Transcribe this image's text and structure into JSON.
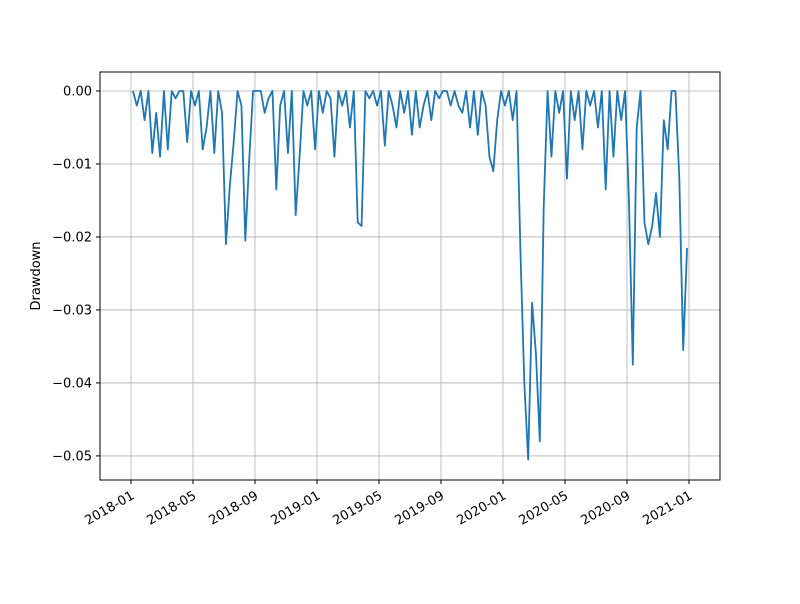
{
  "chart_data": {
    "type": "line",
    "y_label": "Drawdown",
    "x": [
      "2018-01",
      "2018-01",
      "2018-01",
      "2018-01",
      "2018-02",
      "2018-02",
      "2018-02",
      "2018-02",
      "2018-03",
      "2018-03",
      "2018-03",
      "2018-03",
      "2018-04",
      "2018-04",
      "2018-04",
      "2018-04",
      "2018-05",
      "2018-05",
      "2018-05",
      "2018-05",
      "2018-06",
      "2018-06",
      "2018-06",
      "2018-06",
      "2018-07",
      "2018-07",
      "2018-07",
      "2018-07",
      "2018-08",
      "2018-08",
      "2018-08",
      "2018-08",
      "2018-09",
      "2018-09",
      "2018-09",
      "2018-09",
      "2018-10",
      "2018-10",
      "2018-10",
      "2018-10",
      "2018-11",
      "2018-11",
      "2018-11",
      "2018-11",
      "2018-12",
      "2018-12",
      "2018-12",
      "2018-12",
      "2019-01",
      "2019-01",
      "2019-01",
      "2019-01",
      "2019-02",
      "2019-02",
      "2019-02",
      "2019-02",
      "2019-03",
      "2019-03",
      "2019-03",
      "2019-03",
      "2019-04",
      "2019-04",
      "2019-04",
      "2019-04",
      "2019-05",
      "2019-05",
      "2019-05",
      "2019-05",
      "2019-06",
      "2019-06",
      "2019-06",
      "2019-06",
      "2019-07",
      "2019-07",
      "2019-07",
      "2019-07",
      "2019-08",
      "2019-08",
      "2019-08",
      "2019-08",
      "2019-09",
      "2019-09",
      "2019-09",
      "2019-09",
      "2019-10",
      "2019-10",
      "2019-10",
      "2019-10",
      "2019-11",
      "2019-11",
      "2019-11",
      "2019-11",
      "2019-12",
      "2019-12",
      "2019-12",
      "2019-12",
      "2020-01",
      "2020-01",
      "2020-01",
      "2020-01",
      "2020-02",
      "2020-02",
      "2020-02",
      "2020-02",
      "2020-03",
      "2020-03",
      "2020-03",
      "2020-03",
      "2020-04",
      "2020-04",
      "2020-04",
      "2020-04",
      "2020-05",
      "2020-05",
      "2020-05",
      "2020-05",
      "2020-06",
      "2020-06",
      "2020-06",
      "2020-06",
      "2020-07",
      "2020-07",
      "2020-07",
      "2020-07",
      "2020-08",
      "2020-08",
      "2020-08",
      "2020-08",
      "2020-09",
      "2020-09",
      "2020-09",
      "2020-09",
      "2020-10",
      "2020-10",
      "2020-10",
      "2020-10",
      "2020-11",
      "2020-11",
      "2020-11",
      "2020-11",
      "2020-12",
      "2020-12",
      "2020-12",
      "2020-12"
    ],
    "series": [
      {
        "name": "Drawdown",
        "color": "#1f77b4",
        "values": [
          0,
          -0.002,
          0,
          -0.004,
          0,
          -0.0085,
          -0.003,
          -0.009,
          0,
          -0.008,
          0,
          -0.001,
          0,
          0,
          -0.007,
          0,
          -0.002,
          0,
          -0.008,
          -0.005,
          0,
          -0.0085,
          0,
          -0.003,
          -0.021,
          -0.013,
          -0.007,
          0,
          -0.002,
          -0.0205,
          -0.0095,
          0,
          0,
          0,
          -0.003,
          -0.001,
          0,
          -0.0135,
          -0.002,
          0,
          -0.0085,
          0,
          -0.017,
          -0.009,
          0,
          -0.002,
          0,
          -0.008,
          0,
          -0.003,
          0,
          -0.001,
          -0.009,
          0,
          -0.002,
          0,
          -0.005,
          0,
          -0.018,
          -0.0185,
          0,
          -0.001,
          0,
          -0.002,
          0,
          -0.0075,
          0,
          -0.002,
          -0.005,
          0,
          -0.003,
          0,
          -0.006,
          0,
          -0.005,
          -0.002,
          0,
          -0.004,
          0,
          -0.001,
          0,
          0,
          -0.002,
          0,
          -0.002,
          -0.003,
          0,
          -0.005,
          0,
          -0.006,
          0,
          -0.002,
          -0.009,
          -0.011,
          -0.004,
          0,
          -0.002,
          0,
          -0.004,
          0,
          -0.022,
          -0.04,
          -0.0505,
          -0.029,
          -0.036,
          -0.048,
          -0.016,
          0,
          -0.009,
          0,
          -0.003,
          0,
          -0.012,
          0,
          -0.004,
          0,
          -0.008,
          0,
          -0.002,
          0,
          -0.005,
          0,
          -0.0135,
          0,
          -0.009,
          0,
          -0.004,
          0,
          -0.015,
          -0.0375,
          -0.005,
          0,
          -0.018,
          -0.021,
          -0.0185,
          -0.014,
          -0.02,
          -0.004,
          -0.008,
          0,
          0,
          -0.012,
          -0.0355,
          -0.0215
        ]
      }
    ],
    "xlim": [
      "2017-11",
      "2021-03"
    ],
    "xticks": [
      "2018-01",
      "2018-05",
      "2018-09",
      "2019-01",
      "2019-05",
      "2019-09",
      "2020-01",
      "2020-05",
      "2020-09",
      "2021-01"
    ],
    "ylim": [
      -0.0533,
      0.0026
    ],
    "yticks": [
      {
        "value": 0,
        "label": "0.00"
      },
      {
        "value": -0.01,
        "label": "−0.01"
      },
      {
        "value": -0.02,
        "label": "−0.02"
      },
      {
        "value": -0.03,
        "label": "−0.03"
      },
      {
        "value": -0.04,
        "label": "−0.04"
      },
      {
        "value": -0.05,
        "label": "−0.05"
      }
    ],
    "grid": true
  }
}
